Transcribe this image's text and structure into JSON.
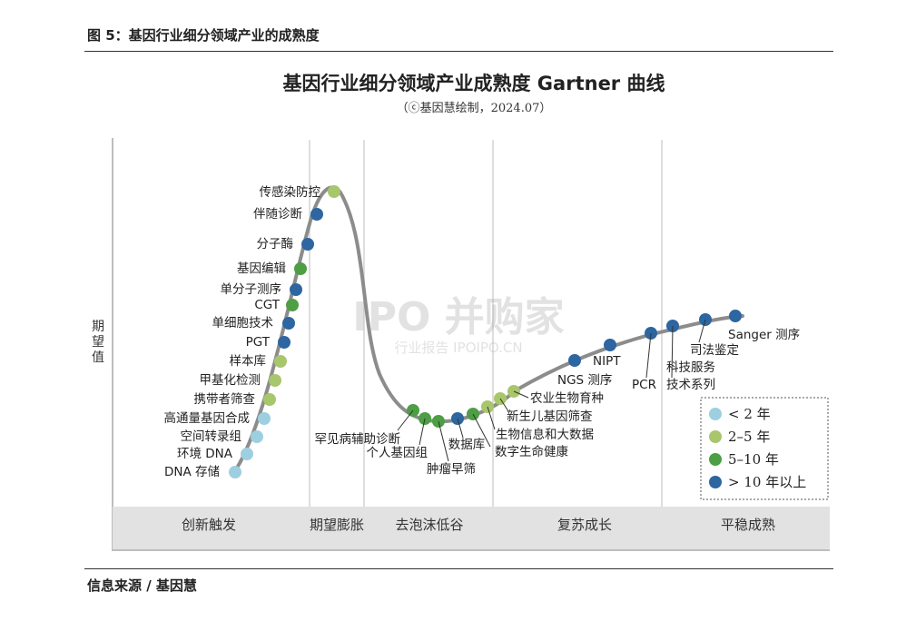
{
  "figure_caption": "图 5：基因行业细分领域产业的成熟度",
  "source": "信息来源 / 基因慧",
  "chart_data": {
    "type": "hype-cycle",
    "title": "基因行业细分领域产业成熟度 Gartner 曲线",
    "subtitle": "（ⓒ基因慧绘制，2024.07）",
    "ylabel": "期望值",
    "phases": [
      "创新触发",
      "期望膨胀",
      "去泡沫低谷",
      "复苏成长",
      "平稳成熟"
    ],
    "legend": [
      {
        "key": "lt2",
        "label": "< 2 年",
        "color": "#9ecfe0"
      },
      {
        "key": "y2to5",
        "label": "2–5 年",
        "color": "#a8c66c"
      },
      {
        "key": "y5to10",
        "label": "5–10 年",
        "color": "#4e9e45"
      },
      {
        "key": "gt10",
        "label": "> 10 年以上",
        "color": "#2d66a0"
      }
    ],
    "items": [
      {
        "label": "DNA 存储",
        "category": "lt2",
        "phase": "创新触发"
      },
      {
        "label": "环境 DNA",
        "category": "lt2",
        "phase": "创新触发"
      },
      {
        "label": "空间转录组",
        "category": "lt2",
        "phase": "创新触发"
      },
      {
        "label": "高通量基因合成",
        "category": "lt2",
        "phase": "创新触发"
      },
      {
        "label": "携带者筛查",
        "category": "y2to5",
        "phase": "创新触发"
      },
      {
        "label": "甲基化检测",
        "category": "y2to5",
        "phase": "创新触发"
      },
      {
        "label": "样本库",
        "category": "y2to5",
        "phase": "创新触发"
      },
      {
        "label": "PGT",
        "category": "gt10",
        "phase": "创新触发"
      },
      {
        "label": "单细胞技术",
        "category": "gt10",
        "phase": "创新触发"
      },
      {
        "label": "CGT",
        "category": "y5to10",
        "phase": "创新触发"
      },
      {
        "label": "单分子测序",
        "category": "gt10",
        "phase": "创新触发"
      },
      {
        "label": "基因编辑",
        "category": "y5to10",
        "phase": "创新触发"
      },
      {
        "label": "分子酶",
        "category": "gt10",
        "phase": "创新触发"
      },
      {
        "label": "伴随诊断",
        "category": "gt10",
        "phase": "期望膨胀"
      },
      {
        "label": "传感染防控",
        "category": "y2to5",
        "phase": "期望膨胀"
      },
      {
        "label": "罕见病辅助诊断",
        "category": "y5to10",
        "phase": "去泡沫低谷"
      },
      {
        "label": "个人基因组",
        "category": "y5to10",
        "phase": "去泡沫低谷"
      },
      {
        "label": "肿瘤早筛",
        "category": "y5to10",
        "phase": "去泡沫低谷"
      },
      {
        "label": "数据库",
        "category": "gt10",
        "phase": "去泡沫低谷"
      },
      {
        "label": "数字生命健康",
        "category": "y5to10",
        "phase": "去泡沫低谷"
      },
      {
        "label": "生物信息和大数据",
        "category": "y2to5",
        "phase": "复苏成长"
      },
      {
        "label": "新生儿基因筛查",
        "category": "y2to5",
        "phase": "复苏成长"
      },
      {
        "label": "农业生物育种",
        "category": "y2to5",
        "phase": "复苏成长"
      },
      {
        "label": "NGS 测序",
        "category": "gt10",
        "phase": "复苏成长"
      },
      {
        "label": "NIPT",
        "category": "gt10",
        "phase": "复苏成长"
      },
      {
        "label": "PCR",
        "category": "gt10",
        "phase": "复苏成长"
      },
      {
        "label": "技术系列",
        "category": "gt10",
        "phase": "复苏成长"
      },
      {
        "label": "科技服务",
        "category": "gt10",
        "phase": "复苏成长"
      },
      {
        "label": "司法鉴定",
        "category": "gt10",
        "phase": "平稳成熟"
      },
      {
        "label": "Sanger 测序",
        "category": "gt10",
        "phase": "平稳成熟"
      }
    ]
  },
  "watermark": {
    "main": "IPO 并购家",
    "sub": "行业报告 IPOIPO.CN"
  }
}
